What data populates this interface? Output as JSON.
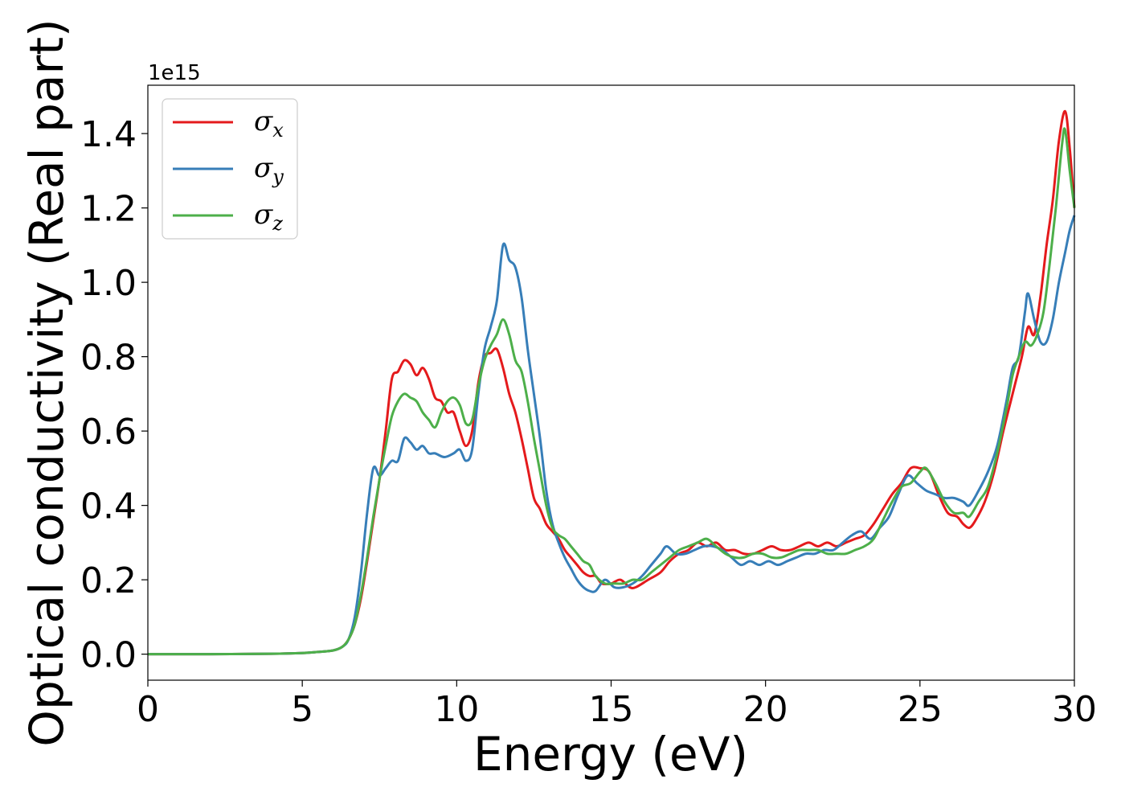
{
  "chart_data": {
    "type": "line",
    "xlabel": "Energy (eV)",
    "ylabel": "Optical conductivity (Real part)",
    "y_offset_label": "1e15",
    "xlim": [
      0,
      30
    ],
    "ylim": [
      -0.07,
      1.53
    ],
    "xticks": [
      0,
      5,
      10,
      15,
      20,
      25,
      30
    ],
    "xtick_labels": [
      "0",
      "5",
      "10",
      "15",
      "20",
      "25",
      "30"
    ],
    "yticks": [
      0.0,
      0.2,
      0.4,
      0.6,
      0.8,
      1.0,
      1.2,
      1.4
    ],
    "ytick_labels": [
      "0.0",
      "0.2",
      "0.4",
      "0.6",
      "0.8",
      "1.0",
      "1.2",
      "1.4"
    ],
    "grid": false,
    "legend_position": "top-left",
    "series": [
      {
        "name": "σ",
        "subscript": "x",
        "color": "#e41a1c",
        "points": [
          [
            0,
            0
          ],
          [
            2,
            0
          ],
          [
            4,
            0.001
          ],
          [
            5,
            0.003
          ],
          [
            5.5,
            0.006
          ],
          [
            6,
            0.01
          ],
          [
            6.3,
            0.02
          ],
          [
            6.5,
            0.04
          ],
          [
            6.7,
            0.08
          ],
          [
            6.9,
            0.15
          ],
          [
            7.1,
            0.25
          ],
          [
            7.3,
            0.36
          ],
          [
            7.5,
            0.47
          ],
          [
            7.7,
            0.6
          ],
          [
            7.9,
            0.74
          ],
          [
            8.1,
            0.76
          ],
          [
            8.3,
            0.79
          ],
          [
            8.5,
            0.78
          ],
          [
            8.7,
            0.75
          ],
          [
            8.9,
            0.77
          ],
          [
            9.1,
            0.74
          ],
          [
            9.3,
            0.69
          ],
          [
            9.5,
            0.68
          ],
          [
            9.7,
            0.65
          ],
          [
            9.9,
            0.65
          ],
          [
            10.1,
            0.6
          ],
          [
            10.3,
            0.56
          ],
          [
            10.5,
            0.6
          ],
          [
            10.7,
            0.73
          ],
          [
            10.9,
            0.8
          ],
          [
            11.1,
            0.81
          ],
          [
            11.3,
            0.82
          ],
          [
            11.5,
            0.77
          ],
          [
            11.7,
            0.7
          ],
          [
            11.9,
            0.65
          ],
          [
            12.1,
            0.58
          ],
          [
            12.3,
            0.5
          ],
          [
            12.5,
            0.42
          ],
          [
            12.7,
            0.39
          ],
          [
            12.9,
            0.35
          ],
          [
            13.1,
            0.33
          ],
          [
            13.3,
            0.31
          ],
          [
            13.5,
            0.28
          ],
          [
            13.7,
            0.26
          ],
          [
            13.9,
            0.24
          ],
          [
            14.1,
            0.22
          ],
          [
            14.3,
            0.21
          ],
          [
            14.5,
            0.21
          ],
          [
            14.7,
            0.19
          ],
          [
            15,
            0.19
          ],
          [
            15.3,
            0.2
          ],
          [
            15.6,
            0.18
          ],
          [
            15.8,
            0.18
          ],
          [
            16.2,
            0.2
          ],
          [
            16.6,
            0.22
          ],
          [
            16.9,
            0.25
          ],
          [
            17.2,
            0.27
          ],
          [
            17.5,
            0.28
          ],
          [
            17.8,
            0.3
          ],
          [
            18.1,
            0.29
          ],
          [
            18.4,
            0.3
          ],
          [
            18.7,
            0.28
          ],
          [
            19,
            0.28
          ],
          [
            19.3,
            0.27
          ],
          [
            19.6,
            0.27
          ],
          [
            19.9,
            0.28
          ],
          [
            20.2,
            0.29
          ],
          [
            20.5,
            0.28
          ],
          [
            20.8,
            0.28
          ],
          [
            21.1,
            0.29
          ],
          [
            21.4,
            0.3
          ],
          [
            21.7,
            0.29
          ],
          [
            22,
            0.3
          ],
          [
            22.3,
            0.29
          ],
          [
            22.6,
            0.3
          ],
          [
            22.9,
            0.31
          ],
          [
            23.2,
            0.32
          ],
          [
            23.5,
            0.35
          ],
          [
            23.8,
            0.39
          ],
          [
            24.1,
            0.43
          ],
          [
            24.4,
            0.46
          ],
          [
            24.7,
            0.5
          ],
          [
            25,
            0.5
          ],
          [
            25.3,
            0.49
          ],
          [
            25.6,
            0.43
          ],
          [
            25.9,
            0.38
          ],
          [
            26.2,
            0.37
          ],
          [
            26.4,
            0.35
          ],
          [
            26.6,
            0.34
          ],
          [
            26.8,
            0.36
          ],
          [
            27.1,
            0.41
          ],
          [
            27.4,
            0.49
          ],
          [
            27.7,
            0.6
          ],
          [
            28,
            0.7
          ],
          [
            28.3,
            0.8
          ],
          [
            28.5,
            0.88
          ],
          [
            28.7,
            0.86
          ],
          [
            28.9,
            0.96
          ],
          [
            29.1,
            1.1
          ],
          [
            29.3,
            1.22
          ],
          [
            29.5,
            1.38
          ],
          [
            29.7,
            1.46
          ],
          [
            29.85,
            1.36
          ],
          [
            30,
            1.2
          ]
        ]
      },
      {
        "name": "σ",
        "subscript": "y",
        "color": "#377eb8",
        "points": [
          [
            0,
            0
          ],
          [
            2,
            0
          ],
          [
            4,
            0.001
          ],
          [
            5,
            0.003
          ],
          [
            5.5,
            0.006
          ],
          [
            6,
            0.01
          ],
          [
            6.3,
            0.02
          ],
          [
            6.5,
            0.04
          ],
          [
            6.7,
            0.1
          ],
          [
            6.9,
            0.22
          ],
          [
            7.1,
            0.38
          ],
          [
            7.3,
            0.5
          ],
          [
            7.5,
            0.48
          ],
          [
            7.7,
            0.5
          ],
          [
            7.9,
            0.52
          ],
          [
            8.1,
            0.52
          ],
          [
            8.3,
            0.58
          ],
          [
            8.5,
            0.57
          ],
          [
            8.7,
            0.55
          ],
          [
            8.9,
            0.56
          ],
          [
            9.1,
            0.54
          ],
          [
            9.3,
            0.54
          ],
          [
            9.6,
            0.53
          ],
          [
            9.9,
            0.54
          ],
          [
            10.1,
            0.55
          ],
          [
            10.3,
            0.52
          ],
          [
            10.5,
            0.55
          ],
          [
            10.7,
            0.7
          ],
          [
            10.9,
            0.82
          ],
          [
            11.1,
            0.88
          ],
          [
            11.3,
            0.95
          ],
          [
            11.5,
            1.1
          ],
          [
            11.7,
            1.06
          ],
          [
            11.9,
            1.04
          ],
          [
            12.1,
            0.96
          ],
          [
            12.3,
            0.82
          ],
          [
            12.5,
            0.7
          ],
          [
            12.7,
            0.58
          ],
          [
            12.9,
            0.44
          ],
          [
            13.1,
            0.35
          ],
          [
            13.3,
            0.3
          ],
          [
            13.5,
            0.26
          ],
          [
            13.7,
            0.23
          ],
          [
            13.9,
            0.2
          ],
          [
            14.1,
            0.18
          ],
          [
            14.3,
            0.17
          ],
          [
            14.5,
            0.17
          ],
          [
            14.8,
            0.2
          ],
          [
            15.1,
            0.18
          ],
          [
            15.4,
            0.18
          ],
          [
            15.7,
            0.19
          ],
          [
            16,
            0.21
          ],
          [
            16.3,
            0.24
          ],
          [
            16.6,
            0.27
          ],
          [
            16.8,
            0.29
          ],
          [
            17.1,
            0.27
          ],
          [
            17.4,
            0.27
          ],
          [
            17.7,
            0.28
          ],
          [
            18,
            0.29
          ],
          [
            18.3,
            0.29
          ],
          [
            18.6,
            0.28
          ],
          [
            18.9,
            0.26
          ],
          [
            19.2,
            0.24
          ],
          [
            19.5,
            0.25
          ],
          [
            19.8,
            0.24
          ],
          [
            20.1,
            0.25
          ],
          [
            20.4,
            0.24
          ],
          [
            20.7,
            0.25
          ],
          [
            21,
            0.26
          ],
          [
            21.3,
            0.27
          ],
          [
            21.6,
            0.27
          ],
          [
            21.9,
            0.28
          ],
          [
            22.2,
            0.28
          ],
          [
            22.5,
            0.3
          ],
          [
            22.8,
            0.32
          ],
          [
            23.1,
            0.33
          ],
          [
            23.4,
            0.31
          ],
          [
            23.7,
            0.34
          ],
          [
            24,
            0.37
          ],
          [
            24.3,
            0.43
          ],
          [
            24.6,
            0.48
          ],
          [
            24.9,
            0.46
          ],
          [
            25.2,
            0.44
          ],
          [
            25.5,
            0.43
          ],
          [
            25.8,
            0.42
          ],
          [
            26.1,
            0.42
          ],
          [
            26.4,
            0.41
          ],
          [
            26.6,
            0.4
          ],
          [
            26.9,
            0.44
          ],
          [
            27.2,
            0.49
          ],
          [
            27.5,
            0.56
          ],
          [
            27.8,
            0.68
          ],
          [
            28,
            0.77
          ],
          [
            28.2,
            0.8
          ],
          [
            28.4,
            0.92
          ],
          [
            28.5,
            0.97
          ],
          [
            28.7,
            0.9
          ],
          [
            28.9,
            0.84
          ],
          [
            29.1,
            0.84
          ],
          [
            29.3,
            0.9
          ],
          [
            29.5,
            1.0
          ],
          [
            29.7,
            1.08
          ],
          [
            29.85,
            1.14
          ],
          [
            30,
            1.18
          ]
        ]
      },
      {
        "name": "σ",
        "subscript": "z",
        "color": "#4daf4a",
        "points": [
          [
            0,
            0
          ],
          [
            2,
            0
          ],
          [
            4,
            0.001
          ],
          [
            5,
            0.003
          ],
          [
            5.5,
            0.006
          ],
          [
            6,
            0.01
          ],
          [
            6.3,
            0.02
          ],
          [
            6.5,
            0.04
          ],
          [
            6.7,
            0.08
          ],
          [
            6.9,
            0.16
          ],
          [
            7.1,
            0.26
          ],
          [
            7.3,
            0.37
          ],
          [
            7.5,
            0.47
          ],
          [
            7.7,
            0.56
          ],
          [
            7.9,
            0.64
          ],
          [
            8.1,
            0.68
          ],
          [
            8.3,
            0.7
          ],
          [
            8.5,
            0.69
          ],
          [
            8.7,
            0.68
          ],
          [
            8.9,
            0.65
          ],
          [
            9.1,
            0.63
          ],
          [
            9.3,
            0.61
          ],
          [
            9.5,
            0.65
          ],
          [
            9.7,
            0.68
          ],
          [
            9.9,
            0.69
          ],
          [
            10.1,
            0.67
          ],
          [
            10.3,
            0.62
          ],
          [
            10.5,
            0.63
          ],
          [
            10.7,
            0.72
          ],
          [
            10.9,
            0.79
          ],
          [
            11.1,
            0.83
          ],
          [
            11.3,
            0.86
          ],
          [
            11.5,
            0.9
          ],
          [
            11.7,
            0.86
          ],
          [
            11.9,
            0.79
          ],
          [
            12.1,
            0.76
          ],
          [
            12.3,
            0.68
          ],
          [
            12.5,
            0.58
          ],
          [
            12.7,
            0.49
          ],
          [
            12.9,
            0.4
          ],
          [
            13.1,
            0.34
          ],
          [
            13.3,
            0.32
          ],
          [
            13.5,
            0.31
          ],
          [
            13.7,
            0.29
          ],
          [
            13.9,
            0.27
          ],
          [
            14.1,
            0.25
          ],
          [
            14.3,
            0.24
          ],
          [
            14.5,
            0.21
          ],
          [
            14.8,
            0.19
          ],
          [
            15.1,
            0.19
          ],
          [
            15.4,
            0.19
          ],
          [
            15.7,
            0.2
          ],
          [
            16,
            0.2
          ],
          [
            16.3,
            0.22
          ],
          [
            16.6,
            0.24
          ],
          [
            16.9,
            0.26
          ],
          [
            17.2,
            0.28
          ],
          [
            17.5,
            0.29
          ],
          [
            17.8,
            0.3
          ],
          [
            18.1,
            0.31
          ],
          [
            18.4,
            0.29
          ],
          [
            18.7,
            0.27
          ],
          [
            19,
            0.26
          ],
          [
            19.3,
            0.26
          ],
          [
            19.6,
            0.27
          ],
          [
            19.9,
            0.27
          ],
          [
            20.2,
            0.26
          ],
          [
            20.5,
            0.26
          ],
          [
            20.8,
            0.27
          ],
          [
            21.1,
            0.28
          ],
          [
            21.4,
            0.28
          ],
          [
            21.7,
            0.28
          ],
          [
            22,
            0.27
          ],
          [
            22.3,
            0.27
          ],
          [
            22.6,
            0.27
          ],
          [
            22.9,
            0.28
          ],
          [
            23.2,
            0.29
          ],
          [
            23.5,
            0.31
          ],
          [
            23.8,
            0.36
          ],
          [
            24.1,
            0.41
          ],
          [
            24.4,
            0.45
          ],
          [
            24.7,
            0.46
          ],
          [
            25,
            0.49
          ],
          [
            25.2,
            0.5
          ],
          [
            25.5,
            0.46
          ],
          [
            25.8,
            0.41
          ],
          [
            26.1,
            0.38
          ],
          [
            26.4,
            0.38
          ],
          [
            26.6,
            0.37
          ],
          [
            26.9,
            0.41
          ],
          [
            27.2,
            0.45
          ],
          [
            27.5,
            0.54
          ],
          [
            27.8,
            0.66
          ],
          [
            28,
            0.75
          ],
          [
            28.2,
            0.8
          ],
          [
            28.4,
            0.84
          ],
          [
            28.6,
            0.83
          ],
          [
            28.8,
            0.86
          ],
          [
            29,
            0.92
          ],
          [
            29.2,
            1.05
          ],
          [
            29.4,
            1.2
          ],
          [
            29.6,
            1.37
          ],
          [
            29.7,
            1.41
          ],
          [
            29.85,
            1.3
          ],
          [
            30,
            1.2
          ]
        ]
      }
    ]
  }
}
